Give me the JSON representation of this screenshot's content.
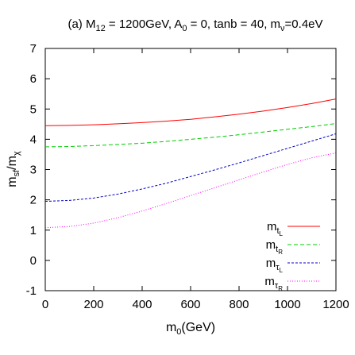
{
  "chart_data": {
    "type": "line",
    "title": {
      "prefix": "(a)  M",
      "m_sub": "12",
      "mid": " = 1200GeV, A",
      "a_sub": "0",
      "rest": " = 0, tanb = 40, m",
      "nu_sub": "ν",
      "tail": "=0.4eV"
    },
    "xlabel": {
      "main": "m",
      "sub": "0",
      "rest": "(GeV)"
    },
    "ylabel": {
      "main": "m",
      "sub1": "sf",
      "slash": "/m",
      "sub2": "χ"
    },
    "xlim": [
      0,
      1200
    ],
    "ylim": [
      -1,
      7
    ],
    "xticks": [
      0,
      200,
      400,
      600,
      800,
      1000,
      1200
    ],
    "yticks": [
      -1,
      0,
      1,
      2,
      3,
      4,
      5,
      6,
      7
    ],
    "legend_position": "lower-right",
    "x": [
      0,
      100,
      200,
      300,
      400,
      500,
      600,
      700,
      800,
      900,
      1000,
      1100,
      1200
    ],
    "series": [
      {
        "name": {
          "main": "m",
          "sub": "t",
          "subsub": "L"
        },
        "color": "#ff0000",
        "dash": "solid",
        "values": [
          4.45,
          4.46,
          4.48,
          4.51,
          4.55,
          4.6,
          4.66,
          4.74,
          4.83,
          4.93,
          5.05,
          5.18,
          5.33
        ]
      },
      {
        "name": {
          "main": "m",
          "sub": "t",
          "subsub": "R"
        },
        "color": "#00cc00",
        "dash": "long-dash",
        "values": [
          3.75,
          3.76,
          3.79,
          3.83,
          3.87,
          3.93,
          4.0,
          4.07,
          4.15,
          4.24,
          4.33,
          4.42,
          4.52
        ]
      },
      {
        "name": {
          "main": "m",
          "sub": "τ",
          "subsub": "L"
        },
        "color": "#0000cc",
        "dash": "short-dash",
        "values": [
          1.95,
          1.98,
          2.06,
          2.19,
          2.36,
          2.55,
          2.77,
          2.99,
          3.22,
          3.46,
          3.7,
          3.94,
          4.18
        ]
      },
      {
        "name": {
          "main": "m",
          "sub": "τ",
          "subsub": "R"
        },
        "color": "#ff00ff",
        "dash": "dotted",
        "values": [
          1.08,
          1.12,
          1.23,
          1.41,
          1.63,
          1.88,
          2.14,
          2.4,
          2.66,
          2.92,
          3.17,
          3.39,
          3.55
        ]
      }
    ]
  }
}
